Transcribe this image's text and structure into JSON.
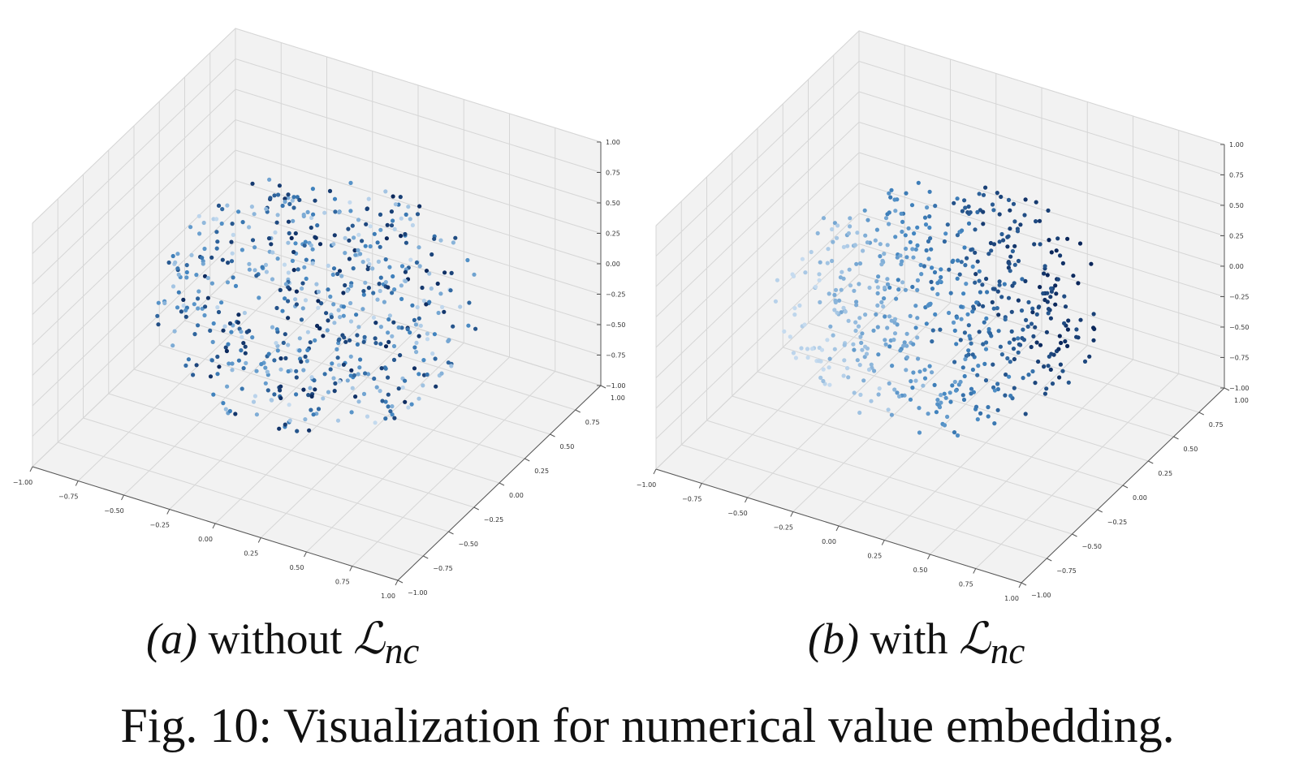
{
  "chart_data": [
    {
      "type": "scatter",
      "subplot_label": "(a)",
      "caption_prefix": "without",
      "symbol": "ℒ",
      "subscript": "nc",
      "projection": "3d",
      "xlim": [
        -1,
        1
      ],
      "ylim": [
        -1,
        1
      ],
      "zlim": [
        -1,
        1
      ],
      "ticks": [
        "−1.00",
        "−0.75",
        "−0.50",
        "−0.25",
        "0.00",
        "0.25",
        "0.50",
        "0.75",
        "1.00"
      ],
      "tick_values": [
        -1,
        -0.75,
        -0.5,
        -0.25,
        0,
        0.25,
        0.5,
        0.75,
        1
      ],
      "points": {
        "count": 600,
        "distribution": "uniform in sphere",
        "radius": 0.8,
        "colormap": "Blues",
        "color_by": "random"
      },
      "grid": true
    },
    {
      "type": "scatter",
      "subplot_label": "(b)",
      "caption_prefix": "with",
      "symbol": "ℒ",
      "subscript": "nc",
      "projection": "3d",
      "xlim": [
        -1,
        1
      ],
      "ylim": [
        -1,
        1
      ],
      "zlim": [
        -1,
        1
      ],
      "ticks": [
        "−1.00",
        "−0.75",
        "−0.50",
        "−0.25",
        "0.00",
        "0.25",
        "0.50",
        "0.75",
        "1.00"
      ],
      "tick_values": [
        -1,
        -0.75,
        -0.5,
        -0.25,
        0,
        0.25,
        0.5,
        0.75,
        1
      ],
      "points": {
        "count": 600,
        "distribution": "uniform in sphere",
        "radius": 0.8,
        "colormap": "Blues",
        "color_by": "x+y gradient"
      },
      "grid": true
    }
  ],
  "figure_caption": "Fig. 10: Visualization for numerical value embedding.",
  "colors": {
    "pane": "#f2f2f2",
    "grid": "#d6d6d6",
    "light": "#c6dbef",
    "mid": "#4a85c0",
    "dark": "#0d2a5e"
  }
}
